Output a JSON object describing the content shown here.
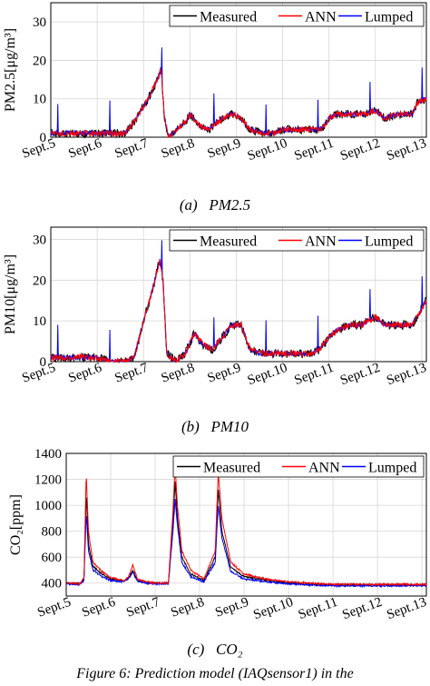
{
  "chart_data": [
    {
      "type": "line",
      "panel_label": "(a)",
      "caption": "PM2.5",
      "ylabel": "PM2.5[μg/m³]",
      "xlabel": "",
      "x_tick_labels": [
        "Sept.5",
        "Sept.6",
        "Sept.7",
        "Sept.8",
        "Sept.9",
        "Sept.10",
        "Sept.11",
        "Sept.12",
        "Sept.13"
      ],
      "xlim": [
        5,
        13.1
      ],
      "yticks": [
        0,
        10,
        20,
        30
      ],
      "ylim": [
        0,
        35
      ],
      "grid": true,
      "legend_position": "top-right",
      "series": [
        {
          "name": "Measured",
          "color": "#000000"
        },
        {
          "name": "ANN",
          "color": "#ff0000"
        },
        {
          "name": "Lumped",
          "color": "#0000ff"
        }
      ],
      "x": [
        5.0,
        5.9,
        6.0,
        6.6,
        6.8,
        7.1,
        7.3,
        7.38,
        7.45,
        7.55,
        7.8,
        7.9,
        8.0,
        8.2,
        8.4,
        8.6,
        8.9,
        9.1,
        9.3,
        9.6,
        9.8,
        10.0,
        10.3,
        10.6,
        10.8,
        10.9,
        11.0,
        11.2,
        11.5,
        11.8,
        12.0,
        12.2,
        12.5,
        12.8,
        12.9,
        13.1
      ],
      "values": [
        1,
        1,
        1,
        1,
        4,
        10,
        15,
        18,
        5,
        0,
        3,
        4,
        6,
        3,
        2,
        4,
        6,
        5,
        2,
        1,
        1,
        2,
        2,
        2,
        2,
        3,
        5,
        6,
        6,
        6,
        7,
        5,
        6,
        6,
        9,
        10
      ]
    },
    {
      "type": "line",
      "panel_label": "(b)",
      "caption": "PM10",
      "ylabel": "PM10[μg/m³]",
      "xlabel": "",
      "x_tick_labels": [
        "Sept.5",
        "Sept.6",
        "Sept.7",
        "Sept.8",
        "Sept.9",
        "Sept.10",
        "Sept.11",
        "Sept.12",
        "Sept.13"
      ],
      "xlim": [
        5,
        13.1
      ],
      "yticks": [
        0,
        10,
        20,
        30
      ],
      "ylim": [
        0,
        33
      ],
      "grid": true,
      "legend_position": "top-right",
      "series": [
        {
          "name": "Measured",
          "color": "#000000"
        },
        {
          "name": "ANN",
          "color": "#ff0000"
        },
        {
          "name": "Lumped",
          "color": "#0000ff"
        }
      ],
      "x": [
        5.0,
        5.5,
        6.0,
        6.3,
        6.6,
        6.8,
        7.0,
        7.2,
        7.35,
        7.42,
        7.5,
        7.7,
        7.9,
        8.1,
        8.3,
        8.5,
        8.7,
        8.9,
        9.1,
        9.3,
        9.5,
        9.8,
        10.0,
        10.3,
        10.6,
        10.8,
        11.0,
        11.2,
        11.5,
        11.7,
        12.0,
        12.2,
        12.5,
        12.8,
        13.0,
        13.1
      ],
      "values": [
        1,
        1,
        1,
        0,
        0,
        1,
        10,
        18,
        25,
        20,
        2,
        0,
        2,
        7,
        4,
        3,
        6,
        9,
        9,
        3,
        2,
        2,
        2,
        2,
        2,
        3,
        6,
        8,
        9,
        9,
        11,
        9,
        9,
        9,
        13,
        15
      ]
    },
    {
      "type": "line",
      "panel_label": "(c)",
      "caption": "CO₂",
      "ylabel": "CO₂[ppm]",
      "xlabel": "",
      "x_tick_labels": [
        "Sept.5",
        "Sept.6",
        "Sept.7",
        "Sept.8",
        "Sept.9",
        "Sept.10",
        "Sept.11",
        "Sept.12",
        "Sept.13"
      ],
      "xlim": [
        5,
        13.1
      ],
      "yticks": [
        400,
        600,
        800,
        1000,
        1200,
        1400
      ],
      "ylim": [
        300,
        1400
      ],
      "grid": true,
      "legend_position": "top-right",
      "series": [
        {
          "name": "Measured",
          "color": "#000000",
          "x": [
            5.0,
            5.3,
            5.4,
            5.45,
            5.5,
            5.6,
            5.8,
            6.0,
            6.3,
            6.4,
            6.5,
            6.6,
            6.8,
            7.0,
            7.3,
            7.4,
            7.45,
            7.5,
            7.6,
            7.8,
            8.1,
            8.35,
            8.42,
            8.5,
            8.7,
            9.0,
            9.5,
            10.0,
            10.5,
            11.0,
            12.0,
            13.1
          ],
          "values": [
            400,
            395,
            430,
            1100,
            700,
            530,
            470,
            430,
            415,
            440,
            500,
            420,
            405,
            400,
            400,
            880,
            1180,
            900,
            600,
            470,
            420,
            600,
            1130,
            800,
            520,
            450,
            420,
            400,
            390,
            385,
            385,
            385
          ]
        },
        {
          "name": "ANN",
          "color": "#ff0000",
          "x": [
            5.0,
            5.3,
            5.4,
            5.45,
            5.5,
            5.6,
            5.8,
            6.0,
            6.3,
            6.4,
            6.5,
            6.6,
            6.8,
            7.0,
            7.3,
            7.4,
            7.45,
            7.5,
            7.6,
            7.8,
            8.1,
            8.35,
            8.42,
            8.5,
            8.7,
            9.0,
            9.5,
            10.0,
            10.5,
            11.0,
            12.0,
            13.1
          ],
          "values": [
            400,
            395,
            440,
            1250,
            800,
            560,
            490,
            440,
            420,
            450,
            540,
            430,
            410,
            400,
            400,
            950,
            1300,
            1000,
            650,
            500,
            430,
            650,
            1250,
            900,
            560,
            470,
            430,
            410,
            400,
            390,
            390,
            390
          ]
        },
        {
          "name": "Lumped",
          "color": "#0000ff",
          "x": [
            5.0,
            5.3,
            5.4,
            5.45,
            5.5,
            5.6,
            5.8,
            6.0,
            6.3,
            6.4,
            6.5,
            6.6,
            6.8,
            7.0,
            7.3,
            7.4,
            7.45,
            7.5,
            7.6,
            7.8,
            8.1,
            8.35,
            8.42,
            8.5,
            8.7,
            9.0,
            9.5,
            10.0,
            10.5,
            11.0,
            12.0,
            13.1
          ],
          "values": [
            395,
            390,
            420,
            950,
            650,
            500,
            450,
            420,
            410,
            430,
            480,
            415,
            400,
            395,
            395,
            800,
            1050,
            850,
            560,
            450,
            410,
            560,
            1000,
            750,
            490,
            430,
            410,
            395,
            385,
            380,
            380,
            380
          ]
        }
      ]
    }
  ],
  "figure_caption": "Figure 6: Prediction model (IAQsensor1) in the"
}
